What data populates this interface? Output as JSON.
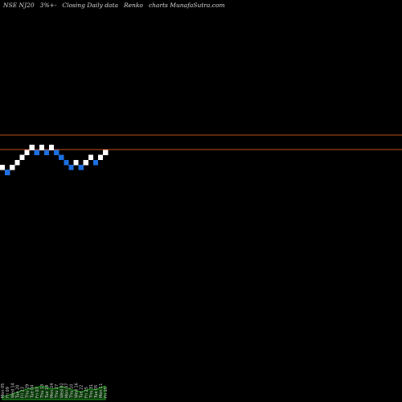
{
  "header": {
    "symbol": "NSE NJ20",
    "box_size": "3%+-",
    "desc": "Closing Daily data",
    "chart_kind": "Renko",
    "site": "charts MunafaSutra.com"
  },
  "colors": {
    "background": "#000000",
    "up_brick": "#ffffff",
    "down_brick": "#1e6fe0",
    "reference_line": "#c0501a",
    "volume_fill": "#0a3a0a",
    "volume_line": "#1f9a1f",
    "tick_text": "#cfcfcf"
  },
  "chart_data": {
    "type": "renko",
    "title": "NSE NJ20 3%+- Closing Daily data Renko charts MunafaSutra.com",
    "reference_levels": [
      1,
      0
    ],
    "bricks": [
      {
        "dir": "up",
        "level": 0
      },
      {
        "dir": "down",
        "level": -1
      },
      {
        "dir": "up",
        "level": 0
      },
      {
        "dir": "up",
        "level": 1
      },
      {
        "dir": "up",
        "level": 2
      },
      {
        "dir": "up",
        "level": 3
      },
      {
        "dir": "up",
        "level": 4
      },
      {
        "dir": "down",
        "level": 3
      },
      {
        "dir": "up",
        "level": 4
      },
      {
        "dir": "down",
        "level": 3
      },
      {
        "dir": "up",
        "level": 4
      },
      {
        "dir": "down",
        "level": 3
      },
      {
        "dir": "down",
        "level": 2
      },
      {
        "dir": "down",
        "level": 1
      },
      {
        "dir": "down",
        "level": 0
      },
      {
        "dir": "up",
        "level": 1
      },
      {
        "dir": "down",
        "level": 0
      },
      {
        "dir": "up",
        "level": 1
      },
      {
        "dir": "up",
        "level": 2
      },
      {
        "dir": "down",
        "level": 1
      },
      {
        "dir": "up",
        "level": 2
      },
      {
        "dir": "up",
        "level": 3
      }
    ],
    "x_ticks": [
      "Mon 05",
      "Fri 09",
      "Wed 14",
      "Tue 20",
      "Fri 23",
      "Thu 29",
      "Tue 04",
      "Fri 07",
      "Thu 13",
      "Tue 18",
      "Mon 24",
      "Thu 27",
      "Wed 02",
      "Mon 07",
      "Thu 10",
      "Wed 16",
      "Tue 22",
      "Fri 25",
      "Thu 31",
      "Tue 05",
      "Mon 11",
      "Fri 15"
    ],
    "volume": [
      10,
      14,
      18,
      24,
      30,
      34,
      38,
      41,
      44,
      40,
      35,
      37,
      42,
      39,
      33,
      29,
      26,
      31,
      35,
      32,
      38,
      45
    ]
  }
}
